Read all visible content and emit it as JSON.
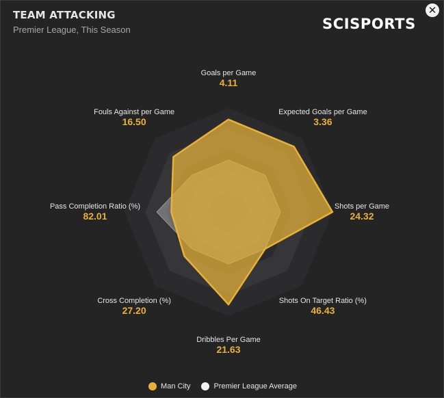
{
  "header": {
    "title": "TEAM ATTACKING",
    "subtitle": "Premier League, This Season",
    "brand": "SCISPORTS",
    "close_symbol": "✕"
  },
  "colors": {
    "team": "#e8b13a",
    "average": "#f2f2f2",
    "ring_dark": "#2b2b2e",
    "ring_light": "#363639",
    "background": "#242424"
  },
  "chart_data": {
    "type": "radar",
    "title": "TEAM ATTACKING",
    "subtitle": "Premier League, This Season",
    "axes": [
      {
        "label": "Goals per Game",
        "value": "4.11"
      },
      {
        "label": "Expected Goals per Game",
        "value": "3.36"
      },
      {
        "label": "Shots per Game",
        "value": "24.32"
      },
      {
        "label": "Shots On Target Ratio (%)",
        "value": "46.43"
      },
      {
        "label": "Dribbles Per Game",
        "value": "21.63"
      },
      {
        "label": "Cross Completion (%)",
        "value": "27.20"
      },
      {
        "label": "Pass Completion Ratio (%)",
        "value": "82.01"
      },
      {
        "label": "Fouls Against per Game",
        "value": "16.50"
      }
    ],
    "series": [
      {
        "name": "Man City",
        "normalized": [
          0.89,
          0.89,
          1.0,
          0.5,
          0.89,
          0.6,
          0.55,
          0.75
        ]
      },
      {
        "name": "Premier League Average",
        "normalized": [
          0.5,
          0.5,
          0.5,
          0.5,
          0.5,
          0.5,
          0.69,
          0.5
        ]
      }
    ],
    "rings": 5,
    "legend_position": "bottom-center"
  },
  "legend": {
    "team_label": "Man City",
    "average_label": "Premier League Average"
  }
}
